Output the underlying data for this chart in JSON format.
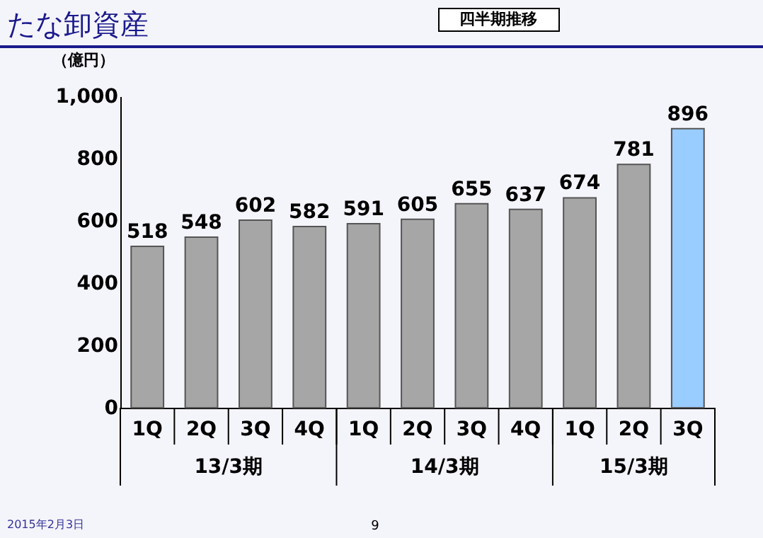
{
  "chart_data": {
    "type": "bar",
    "title": "たな卸資産",
    "ylabel": "（億円）",
    "categories": [
      "1Q",
      "2Q",
      "3Q",
      "4Q",
      "1Q",
      "2Q",
      "3Q",
      "4Q",
      "1Q",
      "2Q",
      "3Q"
    ],
    "values": [
      518,
      548,
      602,
      582,
      591,
      605,
      655,
      637,
      674,
      781,
      896
    ],
    "colors": [
      "#a6a6a6",
      "#a6a6a6",
      "#a6a6a6",
      "#a6a6a6",
      "#a6a6a6",
      "#a6a6a6",
      "#a6a6a6",
      "#a6a6a6",
      "#a6a6a6",
      "#a6a6a6",
      "#99ccff"
    ],
    "ylim": [
      0,
      1000
    ],
    "yticks": [
      0,
      200,
      400,
      600,
      800,
      {
        "value": 1000,
        "label": "1,000"
      }
    ],
    "data_labels": true,
    "grid": false,
    "annotations": [
      "四半期推移",
      "13/3期",
      "14/3期",
      "15/3期",
      "2015年2月3日",
      "9"
    ]
  }
}
